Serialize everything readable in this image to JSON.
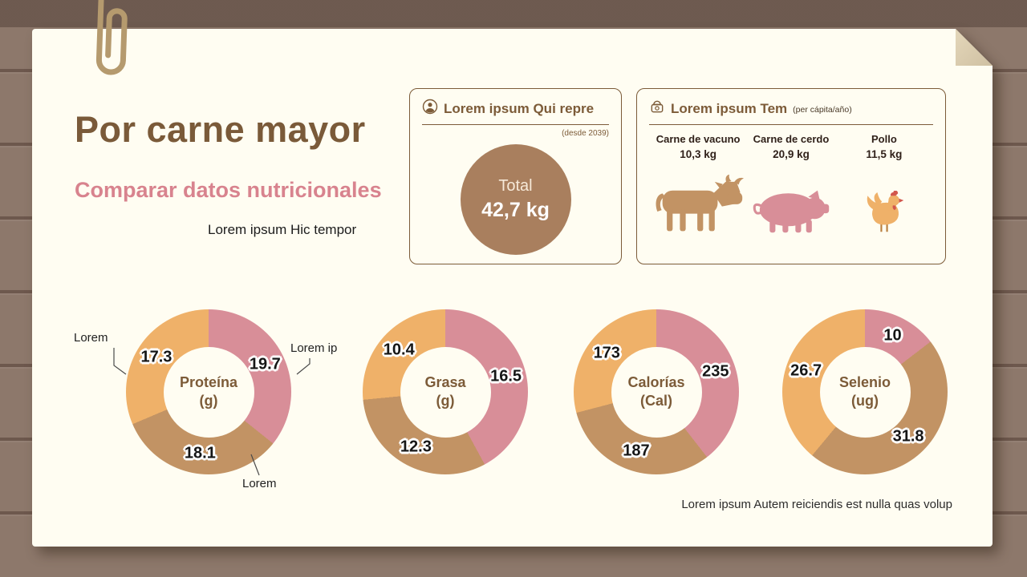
{
  "colors": {
    "orange": "#efb169",
    "pink": "#d88e98",
    "brown": "#c29364",
    "total_circle": "#a97f5e",
    "accent_brown": "#7c5b38",
    "accent_pink": "#d8838e",
    "paper": "#fffdf2"
  },
  "header": {
    "title": "Por carne mayor",
    "subtitle": "Comparar datos nutricionales",
    "tagline": "Lorem ipsum Hic tempor"
  },
  "total_box": {
    "icon": "person-icon",
    "title": "Lorem ipsum Qui repre",
    "since_note": "(desde 2039)",
    "total_label": "Total",
    "total_value": "42,7 kg"
  },
  "consumption_box": {
    "icon": "scale-icon",
    "title": "Lorem ipsum Tem",
    "unit_note": "(per cápita/año)",
    "items": [
      {
        "name": "Carne de vacuno",
        "value": "10,3 kg",
        "icon": "cow-icon",
        "color": "#c29364"
      },
      {
        "name": "Carne de cerdo",
        "value": "20,9 kg",
        "icon": "pig-icon",
        "color": "#d88e98"
      },
      {
        "name": "Pollo",
        "value": "11,5 kg",
        "icon": "chicken-icon",
        "color": "#efb169"
      }
    ]
  },
  "chart_data": {
    "type": "donut",
    "legend_position": "none",
    "segment_order_clockwise_from_top": [
      "pink",
      "brown",
      "orange"
    ],
    "charts": [
      {
        "title": "Proteína",
        "unit": "(g)",
        "segments": [
          {
            "label": "Lorem ip",
            "value": 19.7,
            "color_key": "pink"
          },
          {
            "label": "Lorem",
            "value": 18.1,
            "color_key": "brown"
          },
          {
            "label": "Lorem",
            "value": 17.3,
            "color_key": "orange"
          }
        ]
      },
      {
        "title": "Grasa",
        "unit": "(g)",
        "segments": [
          {
            "value": 16.5,
            "color_key": "pink"
          },
          {
            "value": 12.3,
            "color_key": "brown"
          },
          {
            "value": 10.4,
            "color_key": "orange"
          }
        ]
      },
      {
        "title": "Calorías",
        "unit": "(Cal)",
        "segments": [
          {
            "value": 235,
            "color_key": "pink"
          },
          {
            "value": 187,
            "color_key": "brown"
          },
          {
            "value": 173,
            "color_key": "orange"
          }
        ]
      },
      {
        "title": "Selenio",
        "unit": "(ug)",
        "segments": [
          {
            "value": 10,
            "color_key": "pink"
          },
          {
            "value": 31.8,
            "color_key": "brown"
          },
          {
            "value": 26.7,
            "color_key": "orange"
          }
        ]
      }
    ]
  },
  "footnote": "Lorem ipsum Autem reiciendis est nulla quas volup"
}
